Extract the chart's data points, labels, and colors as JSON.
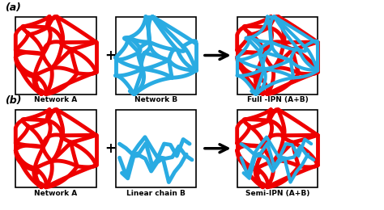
{
  "row_labels": [
    "(a)",
    "(b)"
  ],
  "box_labels_row1": [
    "Network A",
    "Network B",
    "Full -IPN (A+B)"
  ],
  "box_labels_row2": [
    "Network A",
    "Linear chain B",
    "Semi-IPN (A+B)"
  ],
  "red_color": "#EE0000",
  "blue_color": "#29ABE2",
  "background_color": "#FFFFFF",
  "label_fontsize": 6.5,
  "rowlabel_fontsize": 9,
  "lw_network": 3.5
}
